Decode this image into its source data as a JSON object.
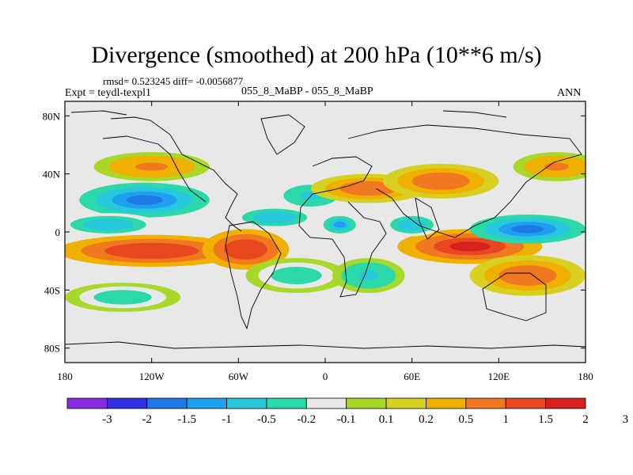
{
  "title": "Divergence (smoothed) at 200 hPa (10**6 m/s)",
  "stats": "rmsd= 0.523245 diff= -0.0056877",
  "experiment": "Expt = teydl-texpl1",
  "cases": "055_8_MaBP - 055_8_MaBP",
  "season": "ANN",
  "axes": {
    "lon_ticks": [
      {
        "lon": -180,
        "label": "180"
      },
      {
        "lon": -120,
        "label": "120W"
      },
      {
        "lon": -60,
        "label": "60W"
      },
      {
        "lon": 0,
        "label": "0"
      },
      {
        "lon": 60,
        "label": "60E"
      },
      {
        "lon": 120,
        "label": "120E"
      },
      {
        "lon": 180,
        "label": "180"
      }
    ],
    "lat_ticks": [
      {
        "lat": 80,
        "label": "80N"
      },
      {
        "lat": 40,
        "label": "40N"
      },
      {
        "lat": 0,
        "label": "0"
      },
      {
        "lat": -40,
        "label": "40S"
      },
      {
        "lat": -80,
        "label": "80S"
      }
    ],
    "lon_range": [
      -180,
      180
    ],
    "lat_range": [
      -90,
      90
    ]
  },
  "colorbar": {
    "colors": [
      "#8a2be2",
      "#3030e0",
      "#1e78e6",
      "#1ea0f0",
      "#28c8dc",
      "#2ad8a8",
      "#e8e8e8",
      "#a8d82a",
      "#d8d020",
      "#f0b000",
      "#f07820",
      "#e84820",
      "#d82020"
    ],
    "labels": [
      "-3",
      "-2",
      "-1.5",
      "-1",
      "-0.5",
      "-0.2",
      "-0.1",
      "0.1",
      "0.2",
      "0.5",
      "1",
      "1.5",
      "2",
      "3"
    ]
  },
  "chart_data": {
    "type": "heatmap",
    "title": "Divergence (smoothed) at 200 hPa (10**6 m/s)",
    "units": "10**6 m/s",
    "levels": [
      -3,
      -2,
      -1.5,
      -1,
      -0.5,
      -0.2,
      -0.1,
      0.1,
      0.2,
      0.5,
      1,
      1.5,
      2,
      3
    ],
    "features": [
      {
        "lon": -125,
        "lat": 22,
        "rx": 45,
        "ry": 12,
        "value": -2.0
      },
      {
        "lon": -120,
        "lat": -13,
        "rx": 65,
        "ry": 11,
        "value": 1.7
      },
      {
        "lon": -150,
        "lat": 5,
        "rx": 35,
        "ry": 8,
        "value": -0.8
      },
      {
        "lon": -55,
        "lat": -12,
        "rx": 30,
        "ry": 14,
        "value": 1.6
      },
      {
        "lon": -35,
        "lat": 10,
        "rx": 30,
        "ry": 8,
        "value": -1.0
      },
      {
        "lon": -10,
        "lat": 25,
        "rx": 25,
        "ry": 10,
        "value": -0.7
      },
      {
        "lon": 10,
        "lat": 5,
        "rx": 15,
        "ry": 8,
        "value": -1.2
      },
      {
        "lon": 30,
        "lat": 30,
        "rx": 40,
        "ry": 10,
        "value": 0.9
      },
      {
        "lon": 80,
        "lat": 35,
        "rx": 40,
        "ry": 12,
        "value": 0.8
      },
      {
        "lon": 100,
        "lat": -10,
        "rx": 50,
        "ry": 12,
        "value": 1.9
      },
      {
        "lon": 140,
        "lat": 2,
        "rx": 40,
        "ry": 10,
        "value": -1.8
      },
      {
        "lon": 140,
        "lat": -30,
        "rx": 40,
        "ry": 14,
        "value": 0.9
      },
      {
        "lon": 160,
        "lat": 45,
        "rx": 30,
        "ry": 10,
        "value": 0.6
      },
      {
        "lon": -120,
        "lat": 45,
        "rx": 40,
        "ry": 10,
        "value": 0.6
      },
      {
        "lon": -20,
        "lat": -30,
        "rx": 35,
        "ry": 12,
        "value": -0.5
      },
      {
        "lon": 30,
        "lat": -30,
        "rx": 25,
        "ry": 12,
        "value": -0.6
      },
      {
        "lon": -140,
        "lat": -45,
        "rx": 40,
        "ry": 10,
        "value": -0.4
      },
      {
        "lon": 60,
        "lat": 5,
        "rx": 20,
        "ry": 8,
        "value": -0.9
      }
    ]
  }
}
